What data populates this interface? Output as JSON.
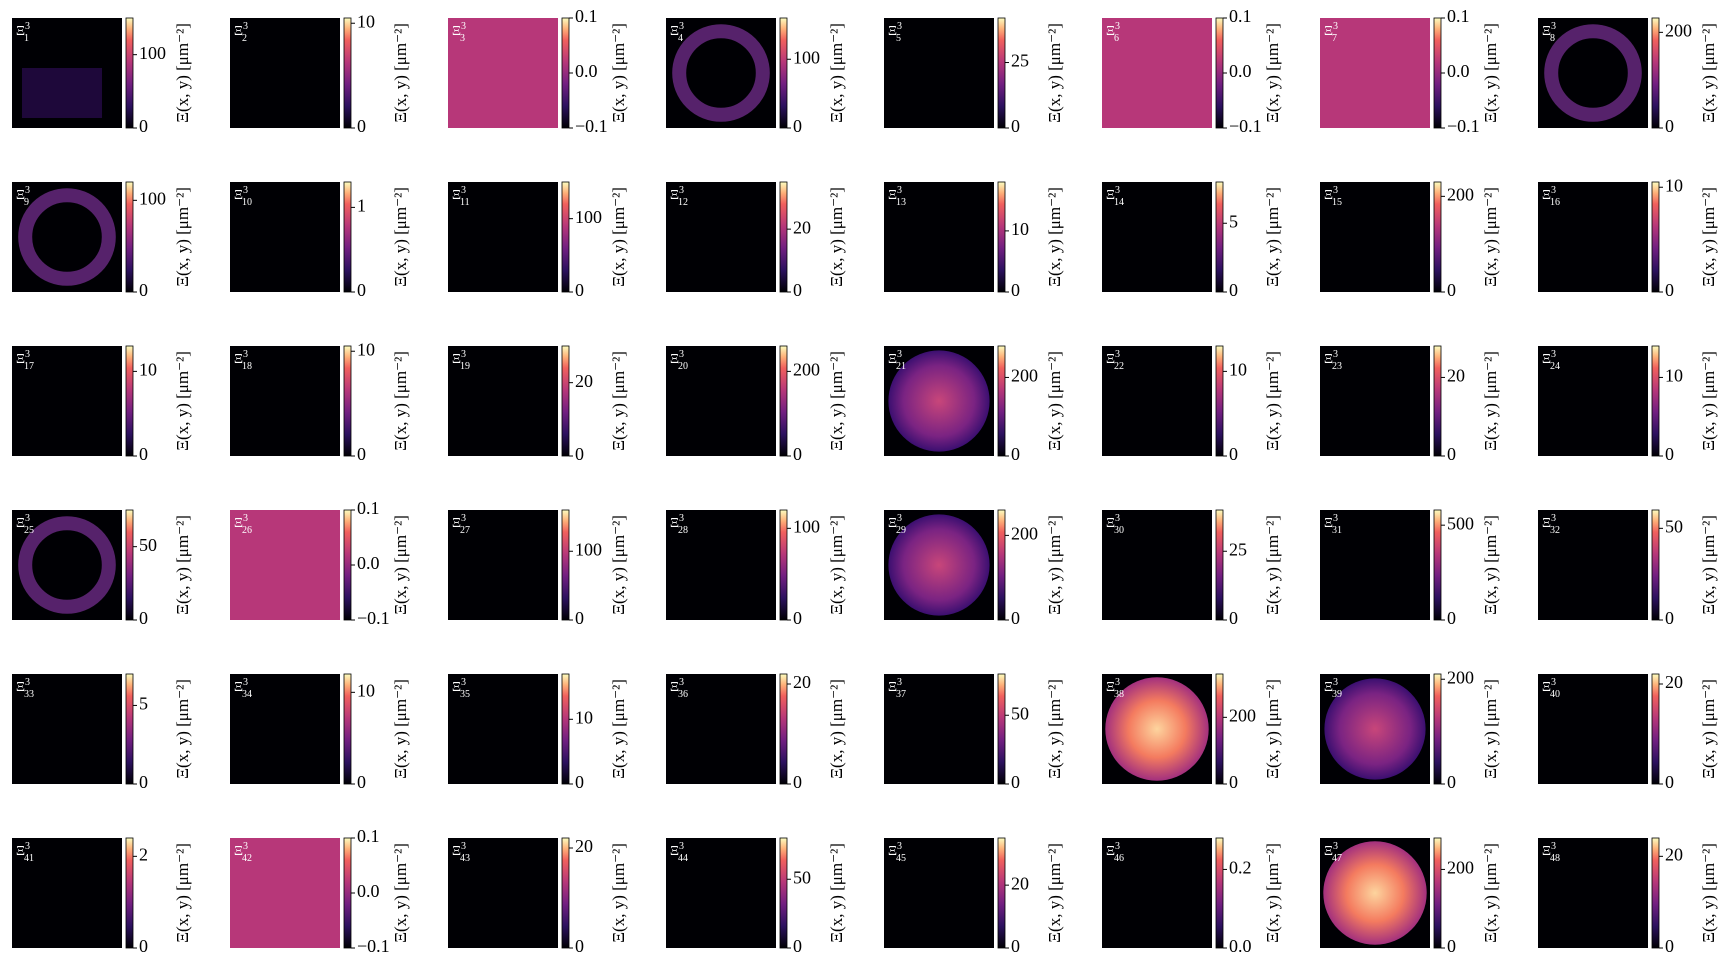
{
  "chart_data": {
    "type": "heatmap-grid",
    "label_symbol": "Ξ",
    "label_sup": "3",
    "colorbar_label": "Ξ(x, y) [μm⁻²]",
    "colormap": "magma",
    "uniform_color": "#b73779",
    "panels": [
      {
        "sub": "1",
        "pattern": "sparse",
        "clim": [
          0,
          150
        ],
        "ticks": [
          0,
          100
        ]
      },
      {
        "sub": "2",
        "pattern": "dark",
        "clim": [
          0,
          10.5
        ],
        "ticks": [
          0,
          10
        ]
      },
      {
        "sub": "3",
        "pattern": "uniform",
        "clim": [
          -0.1,
          0.1
        ],
        "ticks": [
          {
            "value": -0.1,
            "label": "−0.1"
          },
          {
            "value": 0,
            "label": "0.0"
          },
          0.1
        ]
      },
      {
        "sub": "4",
        "pattern": "ring",
        "clim": [
          0,
          160
        ],
        "ticks": [
          0,
          100
        ]
      },
      {
        "sub": "5",
        "pattern": "dark",
        "clim": [
          0,
          42
        ],
        "ticks": [
          0,
          25
        ]
      },
      {
        "sub": "6",
        "pattern": "uniform",
        "clim": [
          -0.1,
          0.1
        ],
        "ticks": [
          {
            "value": -0.1,
            "label": "−0.1"
          },
          {
            "value": 0,
            "label": "0.0"
          },
          0.1
        ]
      },
      {
        "sub": "7",
        "pattern": "uniform",
        "clim": [
          -0.1,
          0.1
        ],
        "ticks": [
          {
            "value": -0.1,
            "label": "−0.1"
          },
          {
            "value": 0,
            "label": "0.0"
          },
          0.1
        ]
      },
      {
        "sub": "8",
        "pattern": "ring",
        "clim": [
          0,
          230
        ],
        "ticks": [
          0,
          200
        ]
      },
      {
        "sub": "9",
        "pattern": "ring",
        "clim": [
          0,
          120
        ],
        "ticks": [
          0,
          100
        ]
      },
      {
        "sub": "10",
        "pattern": "dark",
        "clim": [
          0,
          1.3
        ],
        "ticks": [
          0,
          1
        ]
      },
      {
        "sub": "11",
        "pattern": "dark",
        "clim": [
          0,
          150
        ],
        "ticks": [
          0,
          100
        ]
      },
      {
        "sub": "12",
        "pattern": "dark",
        "clim": [
          0,
          35
        ],
        "ticks": [
          0,
          20
        ]
      },
      {
        "sub": "13",
        "pattern": "dark",
        "clim": [
          0,
          18
        ],
        "ticks": [
          0,
          10
        ]
      },
      {
        "sub": "14",
        "pattern": "dark",
        "clim": [
          0,
          8
        ],
        "ticks": [
          0,
          5
        ]
      },
      {
        "sub": "15",
        "pattern": "dark",
        "clim": [
          0,
          230
        ],
        "ticks": [
          0,
          200
        ]
      },
      {
        "sub": "16",
        "pattern": "dark",
        "clim": [
          0,
          10.5
        ],
        "ticks": [
          0,
          10
        ]
      },
      {
        "sub": "17",
        "pattern": "dark",
        "clim": [
          0,
          13
        ],
        "ticks": [
          0,
          10
        ]
      },
      {
        "sub": "18",
        "pattern": "dark",
        "clim": [
          0,
          10.5
        ],
        "ticks": [
          0,
          10
        ]
      },
      {
        "sub": "19",
        "pattern": "dark",
        "clim": [
          0,
          30
        ],
        "ticks": [
          0,
          20
        ]
      },
      {
        "sub": "20",
        "pattern": "dark",
        "clim": [
          0,
          260
        ],
        "ticks": [
          0,
          200
        ]
      },
      {
        "sub": "21",
        "pattern": "disk",
        "clim": [
          0,
          280
        ],
        "ticks": [
          0,
          200
        ]
      },
      {
        "sub": "22",
        "pattern": "dark",
        "clim": [
          0,
          13
        ],
        "ticks": [
          0,
          10
        ]
      },
      {
        "sub": "23",
        "pattern": "dark",
        "clim": [
          0,
          28
        ],
        "ticks": [
          0,
          20
        ]
      },
      {
        "sub": "24",
        "pattern": "dark",
        "clim": [
          0,
          14
        ],
        "ticks": [
          0,
          10
        ]
      },
      {
        "sub": "25",
        "pattern": "ring",
        "clim": [
          0,
          75
        ],
        "ticks": [
          0,
          50
        ]
      },
      {
        "sub": "26",
        "pattern": "uniform",
        "clim": [
          -0.1,
          0.1
        ],
        "ticks": [
          {
            "value": -0.1,
            "label": "−0.1"
          },
          {
            "value": 0,
            "label": "0.0"
          },
          0.1
        ]
      },
      {
        "sub": "27",
        "pattern": "dark",
        "clim": [
          0,
          160
        ],
        "ticks": [
          0,
          100
        ]
      },
      {
        "sub": "28",
        "pattern": "dark",
        "clim": [
          0,
          120
        ],
        "ticks": [
          0,
          100
        ]
      },
      {
        "sub": "29",
        "pattern": "disk",
        "clim": [
          0,
          260
        ],
        "ticks": [
          0,
          200
        ]
      },
      {
        "sub": "30",
        "pattern": "dark",
        "clim": [
          0,
          40
        ],
        "ticks": [
          0,
          25
        ]
      },
      {
        "sub": "31",
        "pattern": "dark",
        "clim": [
          0,
          580
        ],
        "ticks": [
          0,
          500
        ]
      },
      {
        "sub": "32",
        "pattern": "dark",
        "clim": [
          0,
          60
        ],
        "ticks": [
          0,
          50
        ]
      },
      {
        "sub": "33",
        "pattern": "dark",
        "clim": [
          0,
          7
        ],
        "ticks": [
          0,
          5
        ]
      },
      {
        "sub": "34",
        "pattern": "dark",
        "clim": [
          0,
          12
        ],
        "ticks": [
          0,
          10
        ]
      },
      {
        "sub": "35",
        "pattern": "dark",
        "clim": [
          0,
          17
        ],
        "ticks": [
          0,
          10
        ]
      },
      {
        "sub": "36",
        "pattern": "dark",
        "clim": [
          0,
          22
        ],
        "ticks": [
          0,
          20
        ]
      },
      {
        "sub": "37",
        "pattern": "dark",
        "clim": [
          0,
          80
        ],
        "ticks": [
          0,
          50
        ]
      },
      {
        "sub": "38",
        "pattern": "bright-disk",
        "clim": [
          0,
          330
        ],
        "ticks": [
          0,
          200
        ]
      },
      {
        "sub": "39",
        "pattern": "disk",
        "clim": [
          0,
          210
        ],
        "ticks": [
          0,
          200
        ]
      },
      {
        "sub": "40",
        "pattern": "dark",
        "clim": [
          0,
          22
        ],
        "ticks": [
          0,
          20
        ]
      },
      {
        "sub": "41",
        "pattern": "dark",
        "clim": [
          0,
          2.4
        ],
        "ticks": [
          0,
          2
        ]
      },
      {
        "sub": "42",
        "pattern": "uniform",
        "clim": [
          -0.1,
          0.1
        ],
        "ticks": [
          {
            "value": -0.1,
            "label": "−0.1"
          },
          {
            "value": 0,
            "label": "0.0"
          },
          0.1
        ]
      },
      {
        "sub": "43",
        "pattern": "dark",
        "clim": [
          0,
          22
        ],
        "ticks": [
          0,
          20
        ]
      },
      {
        "sub": "44",
        "pattern": "dark",
        "clim": [
          0,
          80
        ],
        "ticks": [
          0,
          50
        ]
      },
      {
        "sub": "45",
        "pattern": "dark",
        "clim": [
          0,
          35
        ],
        "ticks": [
          0,
          20
        ]
      },
      {
        "sub": "46",
        "pattern": "dark",
        "clim": [
          0,
          0.28
        ],
        "ticks": [
          {
            "value": 0,
            "label": "0.0"
          },
          0.2
        ]
      },
      {
        "sub": "47",
        "pattern": "bright-disk",
        "clim": [
          0,
          280
        ],
        "ticks": [
          0,
          200
        ]
      },
      {
        "sub": "48",
        "pattern": "dark",
        "clim": [
          0,
          24
        ],
        "ticks": [
          0,
          20
        ]
      }
    ]
  }
}
